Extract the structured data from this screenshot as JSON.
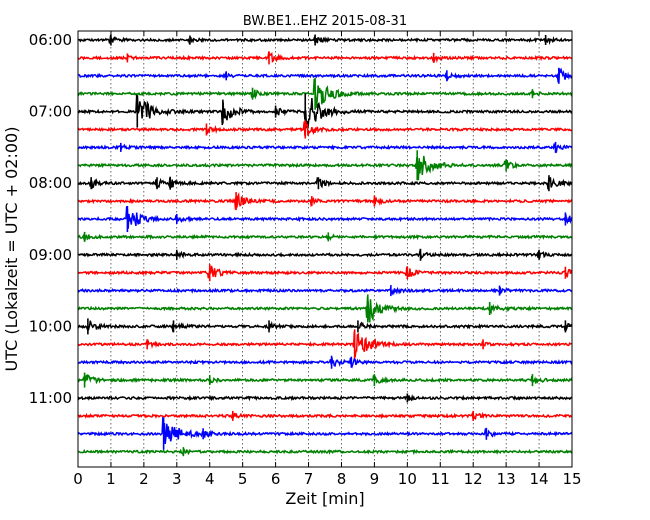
{
  "chart_data": {
    "type": "helicorder",
    "title": "BW.BE1..EHZ 2015-08-31",
    "xlabel": "Zeit  [min]",
    "ylabel": "UTC (Lokalzeit = UTC + 02:00)",
    "xlim": [
      0,
      15
    ],
    "x_ticks": [
      "0",
      "1",
      "2",
      "3",
      "4",
      "5",
      "6",
      "7",
      "8",
      "9",
      "10",
      "11",
      "12",
      "13",
      "14",
      "15"
    ],
    "y_ticks": [
      {
        "label": "06:00",
        "trace": 0
      },
      {
        "label": "07:00",
        "trace": 4
      },
      {
        "label": "08:00",
        "trace": 8
      },
      {
        "label": "09:00",
        "trace": 12
      },
      {
        "label": "10:00",
        "trace": 16
      },
      {
        "label": "11:00",
        "trace": 20
      }
    ],
    "grid": "vertical dotted lines at each minute",
    "trace_minutes": 15,
    "color_cycle": [
      "#000000",
      "#ff0000",
      "#0000ff",
      "#008000"
    ],
    "traces": [
      {
        "start": "06:00",
        "events": [
          {
            "min": 1.0,
            "amp": 0.25
          },
          {
            "min": 3.4,
            "amp": 0.15
          },
          {
            "min": 7.2,
            "amp": 0.25
          },
          {
            "min": 14.2,
            "amp": 0.2
          }
        ]
      },
      {
        "start": "06:15",
        "events": [
          {
            "min": 1.5,
            "amp": 0.15
          },
          {
            "min": 5.8,
            "amp": 0.35
          },
          {
            "min": 10.8,
            "amp": 0.2
          }
        ]
      },
      {
        "start": "06:30",
        "events": [
          {
            "min": 4.5,
            "amp": 0.15
          },
          {
            "min": 11.2,
            "amp": 0.25
          },
          {
            "min": 14.6,
            "amp": 0.5
          }
        ]
      },
      {
        "start": "06:45",
        "events": [
          {
            "min": 5.3,
            "amp": 0.3
          },
          {
            "min": 7.2,
            "amp": 1.3
          },
          {
            "min": 13.8,
            "amp": 0.15
          }
        ]
      },
      {
        "start": "07:00",
        "events": [
          {
            "min": 1.8,
            "amp": 1.3
          },
          {
            "min": 4.4,
            "amp": 0.9
          },
          {
            "min": 6.0,
            "amp": 0.3
          },
          {
            "min": 6.9,
            "amp": 1.5
          }
        ]
      },
      {
        "start": "07:15",
        "events": [
          {
            "min": 3.9,
            "amp": 0.3
          },
          {
            "min": 6.9,
            "amp": 0.6
          }
        ]
      },
      {
        "start": "07:30",
        "events": [
          {
            "min": 1.3,
            "amp": 0.15
          },
          {
            "min": 14.5,
            "amp": 0.25
          }
        ]
      },
      {
        "start": "07:45",
        "events": [
          {
            "min": 10.3,
            "amp": 1.2
          },
          {
            "min": 13.0,
            "amp": 0.3
          }
        ]
      },
      {
        "start": "08:00",
        "events": [
          {
            "min": 0.4,
            "amp": 0.3
          },
          {
            "min": 2.4,
            "amp": 0.3
          },
          {
            "min": 2.8,
            "amp": 0.35
          },
          {
            "min": 7.3,
            "amp": 0.3
          },
          {
            "min": 14.3,
            "amp": 0.5
          }
        ]
      },
      {
        "start": "08:15",
        "events": [
          {
            "min": 4.8,
            "amp": 0.6
          },
          {
            "min": 7.1,
            "amp": 0.2
          },
          {
            "min": 9.0,
            "amp": 0.25
          }
        ]
      },
      {
        "start": "08:30",
        "events": [
          {
            "min": 1.5,
            "amp": 1.0
          },
          {
            "min": 3.0,
            "amp": 0.2
          },
          {
            "min": 14.8,
            "amp": 0.35
          }
        ]
      },
      {
        "start": "08:45",
        "events": [
          {
            "min": 0.2,
            "amp": 0.2
          },
          {
            "min": 7.6,
            "amp": 0.15
          }
        ]
      },
      {
        "start": "09:00",
        "events": [
          {
            "min": 3.0,
            "amp": 0.2
          },
          {
            "min": 10.4,
            "amp": 0.3
          },
          {
            "min": 14.0,
            "amp": 0.2
          }
        ]
      },
      {
        "start": "09:15",
        "events": [
          {
            "min": 4.0,
            "amp": 0.55
          },
          {
            "min": 10.0,
            "amp": 0.35
          },
          {
            "min": 14.8,
            "amp": 0.3
          }
        ]
      },
      {
        "start": "09:30",
        "events": [
          {
            "min": 9.5,
            "amp": 0.25
          },
          {
            "min": 12.8,
            "amp": 0.2
          }
        ]
      },
      {
        "start": "09:45",
        "events": [
          {
            "min": 8.8,
            "amp": 1.1
          },
          {
            "min": 12.5,
            "amp": 0.35
          }
        ]
      },
      {
        "start": "10:00",
        "events": [
          {
            "min": 0.3,
            "amp": 0.5
          },
          {
            "min": 2.9,
            "amp": 0.3
          },
          {
            "min": 5.8,
            "amp": 0.3
          },
          {
            "min": 8.5,
            "amp": 0.3
          },
          {
            "min": 14.8,
            "amp": 0.3
          }
        ]
      },
      {
        "start": "10:15",
        "events": [
          {
            "min": 2.1,
            "amp": 0.2
          },
          {
            "min": 8.4,
            "amp": 1.2
          },
          {
            "min": 12.3,
            "amp": 0.2
          }
        ]
      },
      {
        "start": "10:30",
        "events": [
          {
            "min": 7.7,
            "amp": 0.35
          },
          {
            "min": 8.3,
            "amp": 0.25
          }
        ]
      },
      {
        "start": "10:45",
        "events": [
          {
            "min": 0.2,
            "amp": 0.45
          },
          {
            "min": 4.0,
            "amp": 0.2
          },
          {
            "min": 9.0,
            "amp": 0.3
          },
          {
            "min": 13.8,
            "amp": 0.3
          }
        ]
      },
      {
        "start": "11:00",
        "events": [
          {
            "min": 10.0,
            "amp": 0.15
          }
        ]
      },
      {
        "start": "11:15",
        "events": [
          {
            "min": 4.7,
            "amp": 0.2
          },
          {
            "min": 12.0,
            "amp": 0.2
          }
        ]
      },
      {
        "start": "11:30",
        "events": [
          {
            "min": 2.6,
            "amp": 1.3
          },
          {
            "min": 3.8,
            "amp": 0.25
          },
          {
            "min": 12.4,
            "amp": 0.3
          }
        ]
      },
      {
        "start": "11:45",
        "events": [
          {
            "min": 3.2,
            "amp": 0.15
          }
        ]
      }
    ]
  }
}
